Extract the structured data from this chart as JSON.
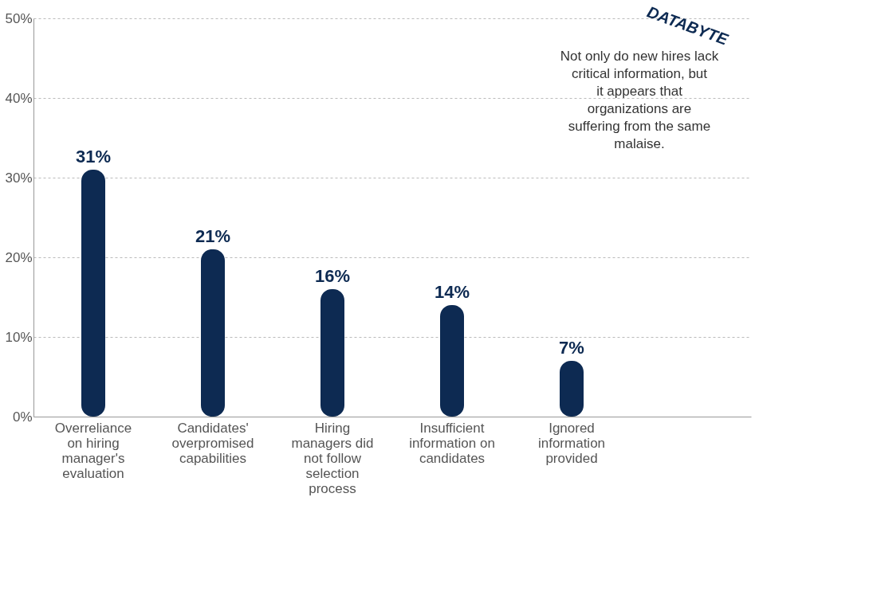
{
  "chart_data": {
    "type": "bar",
    "categories": [
      "Overreliance on hiring manager's evaluation",
      "Candidates' overpromised capabilities",
      "Hiring managers did not follow selection process",
      "Insufficient information on candidates",
      "Ignored information provided"
    ],
    "values": [
      31,
      21,
      16,
      14,
      7
    ],
    "value_labels": [
      "31%",
      "21%",
      "16%",
      "14%",
      "7%"
    ],
    "color": "#0d2a52",
    "ylim": [
      0,
      50
    ],
    "yticks": [
      {
        "value": 0,
        "label": "0%"
      },
      {
        "value": 10,
        "label": "10%"
      },
      {
        "value": 20,
        "label": "20%"
      },
      {
        "value": 30,
        "label": "30%"
      },
      {
        "value": 40,
        "label": "40%"
      },
      {
        "value": 50,
        "label": "50%"
      }
    ],
    "grid": "y",
    "annotations": [
      "DATABYTE",
      "Not only do new hires lack critical information, but it appears that organizations are suffering from the same malaise."
    ]
  }
}
